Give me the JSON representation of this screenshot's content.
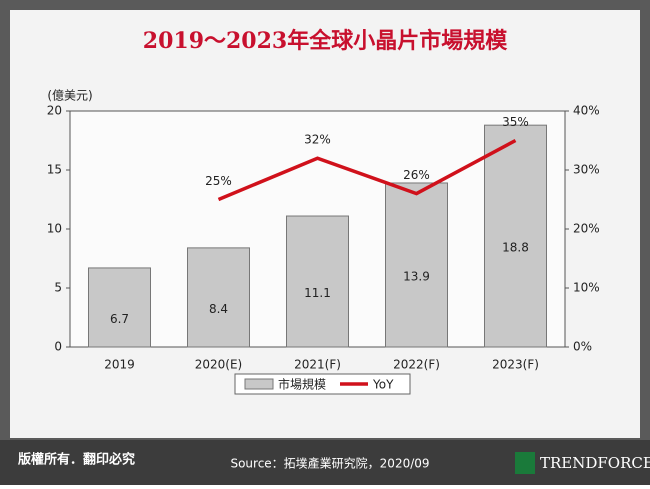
{
  "chart_data": {
    "type": "bar_line",
    "title": "2019～2023年全球小晶片市場規模",
    "y_axis_label": "(億美元)",
    "categories": [
      "2019",
      "2020(E)",
      "2021(F)",
      "2022(F)",
      "2023(F)"
    ],
    "series": [
      {
        "name": "市場規模",
        "type": "bar",
        "color": "#c8c8c8",
        "values": [
          6.7,
          8.4,
          11.1,
          13.9,
          18.8
        ]
      },
      {
        "name": "YoY",
        "type": "line",
        "axis": "y2",
        "color": "#d0111b",
        "values": [
          null,
          25,
          32,
          26,
          35
        ],
        "value_labels": [
          null,
          "25%",
          "32%",
          "26%",
          "35%"
        ]
      }
    ],
    "ylim": [
      0,
      20
    ],
    "yticks": [
      0,
      5,
      10,
      15,
      20
    ],
    "y2lim": [
      0,
      40
    ],
    "y2ticks": [
      {
        "value": 0,
        "label": "0%"
      },
      {
        "value": 10,
        "label": "10%"
      },
      {
        "value": 20,
        "label": "20%"
      },
      {
        "value": 30,
        "label": "30%"
      },
      {
        "value": 40,
        "label": "40%"
      }
    ],
    "legend": "bottom"
  },
  "footer": {
    "rights": "版權所有．翻印必究",
    "source": "Source：拓墣產業研究院，2020/09",
    "logo": "TRENDFORCE"
  }
}
